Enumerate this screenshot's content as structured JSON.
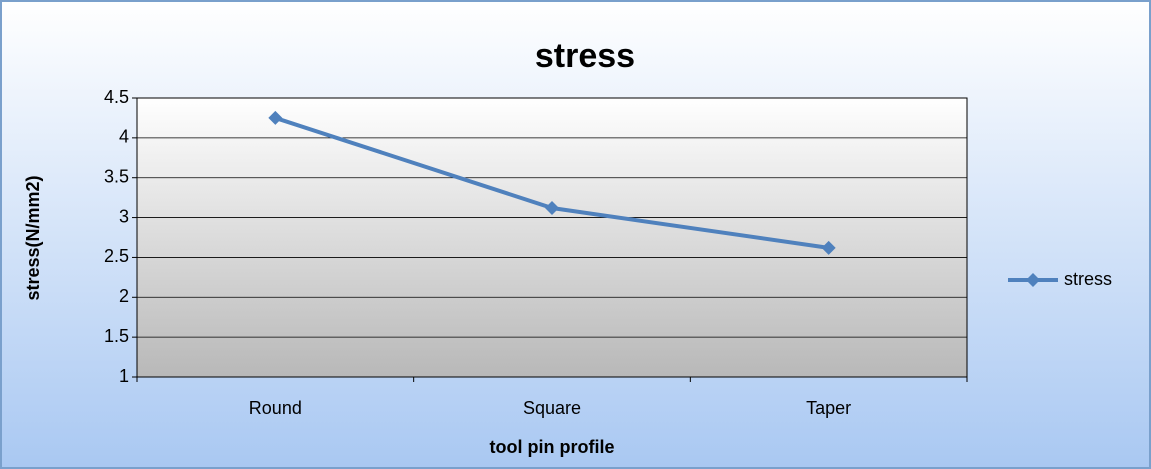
{
  "chart_data": {
    "type": "line",
    "title": "stress",
    "xlabel": "tool pin profile",
    "ylabel": "stress(N/mm2)",
    "categories": [
      "Round",
      "Square",
      "Taper"
    ],
    "series": [
      {
        "name": "stress",
        "color": "#4f81bd",
        "values": [
          4.25,
          3.12,
          2.62
        ]
      }
    ],
    "ylim": [
      1,
      4.5
    ],
    "yticks": [
      1,
      1.5,
      2,
      2.5,
      3,
      3.5,
      4,
      4.5
    ],
    "grid": true,
    "legend": "right"
  }
}
